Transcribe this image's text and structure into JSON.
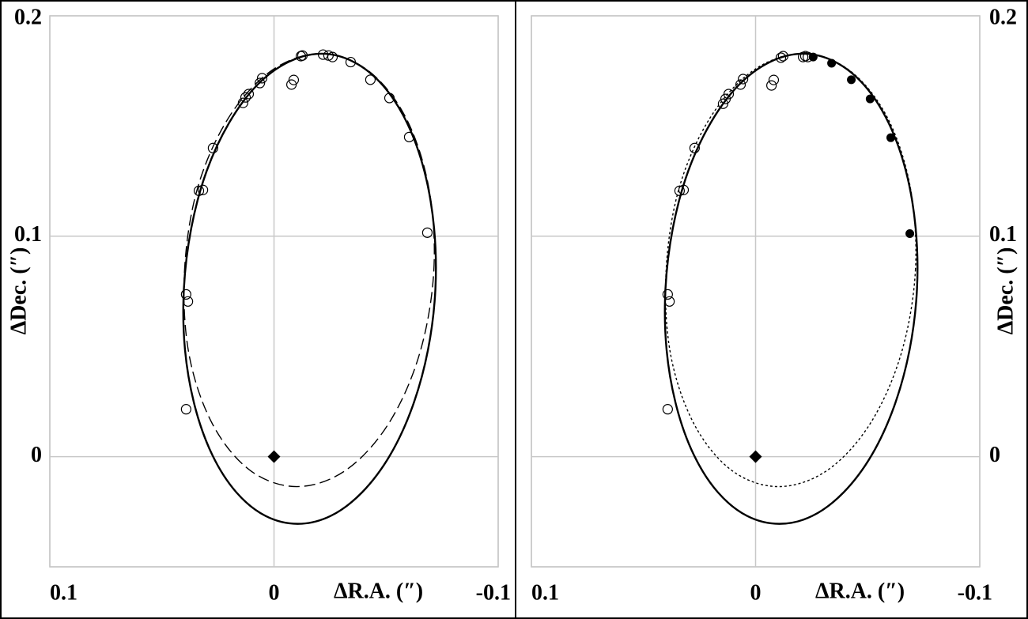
{
  "chart_data": [
    {
      "type": "scatter",
      "x_label": "ΔR.A. (″)",
      "y_label": "ΔDec. (″)",
      "y_axis_side": "left",
      "xlim": [
        0.1,
        -0.1
      ],
      "ylim": [
        -0.05,
        0.2
      ],
      "xticks": [
        0.1,
        0,
        -0.1
      ],
      "yticks": [
        0,
        0.1,
        0.2
      ],
      "grid": true,
      "series": [
        {
          "kind": "line",
          "line_style": "solid",
          "color": "#000000",
          "x": [
            -0.072,
            -0.0714,
            -0.0671,
            -0.0593,
            -0.0485,
            -0.0355,
            -0.0212,
            -0.0065,
            0.0076,
            0.02,
            0.0301,
            0.0369,
            0.0402,
            0.0397,
            0.0353,
            0.0275,
            0.0168,
            0.0038,
            -0.0106,
            -0.0253,
            -0.0393,
            -0.0518,
            -0.0618,
            -0.0687
          ],
          "y": [
            0.0761,
            0.1037,
            0.1294,
            0.1515,
            0.1685,
            0.1791,
            0.1828,
            0.1791,
            0.1685,
            0.1515,
            0.1294,
            0.1037,
            0.0761,
            0.0485,
            0.0228,
            0.0007,
            -0.0162,
            -0.0269,
            -0.0305,
            -0.0269,
            -0.0162,
            0.0007,
            0.0228,
            0.0485
          ]
        },
        {
          "kind": "line",
          "line_style": "dashed",
          "color": "#000000",
          "x": [
            -0.0713,
            -0.069,
            -0.0587,
            -0.0418,
            -0.0208,
            0.0009,
            0.0201,
            0.034,
            0.0399,
            0.038,
            0.0276,
            0.0107,
            -0.0102,
            -0.032,
            -0.0512,
            -0.065
          ],
          "y": [
            0.0846,
            0.1222,
            0.154,
            0.1753,
            0.1828,
            0.1753,
            0.154,
            0.1222,
            0.0846,
            0.0469,
            0.0151,
            -0.0062,
            -0.0136,
            -0.0062,
            0.0151,
            0.0469
          ]
        },
        {
          "kind": "points",
          "marker": "open-circle",
          "color": "#000000",
          "x": [
            0.0392,
            0.0384,
            0.0392,
            0.0335,
            0.0317,
            0.0272,
            0.0138,
            0.0127,
            0.0113,
            0.0063,
            0.0053,
            -0.0078,
            -0.0088,
            -0.012,
            -0.0127,
            -0.0219,
            -0.0243,
            -0.0261,
            -0.0342,
            -0.043,
            -0.0515,
            -0.0603,
            -0.0684
          ],
          "y": [
            0.0736,
            0.0704,
            0.0215,
            0.1206,
            0.121,
            0.14,
            0.1605,
            0.163,
            0.1645,
            0.1695,
            0.1717,
            0.1688,
            0.1709,
            0.1817,
            0.182,
            0.1824,
            0.182,
            0.1813,
            0.179,
            0.171,
            0.1627,
            0.145,
            0.1016
          ]
        },
        {
          "kind": "points",
          "marker": "diamond",
          "color": "#000000",
          "x": [
            0
          ],
          "y": [
            0
          ]
        }
      ]
    },
    {
      "type": "scatter",
      "x_label": "ΔR.A. (″)",
      "y_label": "ΔDec. (″)",
      "y_axis_side": "right",
      "xlim": [
        0.1,
        -0.1
      ],
      "ylim": [
        -0.05,
        0.2
      ],
      "xticks": [
        0.1,
        0,
        -0.1
      ],
      "yticks": [
        0,
        0.1,
        0.2
      ],
      "grid": true,
      "series": [
        {
          "kind": "line",
          "line_style": "solid",
          "color": "#000000",
          "x": [
            -0.072,
            -0.0714,
            -0.0671,
            -0.0593,
            -0.0485,
            -0.0355,
            -0.0212,
            -0.0065,
            0.0076,
            0.02,
            0.0301,
            0.0369,
            0.0402,
            0.0397,
            0.0353,
            0.0275,
            0.0168,
            0.0038,
            -0.0106,
            -0.0253,
            -0.0393,
            -0.0518,
            -0.0618,
            -0.0687
          ],
          "y": [
            0.0761,
            0.1037,
            0.1294,
            0.1515,
            0.1685,
            0.1791,
            0.1828,
            0.1791,
            0.1685,
            0.1515,
            0.1294,
            0.1037,
            0.0761,
            0.0485,
            0.0228,
            0.0007,
            -0.0162,
            -0.0269,
            -0.0305,
            -0.0269,
            -0.0162,
            0.0007,
            0.0228,
            0.0485
          ]
        },
        {
          "kind": "line",
          "line_style": "dotted",
          "color": "#000000",
          "x": [
            -0.0713,
            -0.069,
            -0.0587,
            -0.0418,
            -0.0208,
            0.0009,
            0.0201,
            0.034,
            0.0399,
            0.038,
            0.0276,
            0.0107,
            -0.0102,
            -0.032,
            -0.0512,
            -0.065
          ],
          "y": [
            0.0846,
            0.1222,
            0.154,
            0.1753,
            0.1828,
            0.1753,
            0.154,
            0.1222,
            0.0846,
            0.0469,
            0.0151,
            -0.0062,
            -0.0136,
            -0.0062,
            0.0151,
            0.0469
          ]
        },
        {
          "kind": "points",
          "marker": "open-circle",
          "color": "#000000",
          "x": [
            0.0392,
            0.0384,
            0.0392,
            0.0339,
            0.0321,
            0.0272,
            0.0145,
            0.0134,
            0.012,
            0.0067,
            0.0056,
            -0.0071,
            -0.0081,
            -0.0113,
            -0.0123,
            -0.0212,
            -0.0222,
            -0.0233
          ],
          "y": [
            0.0736,
            0.0704,
            0.0215,
            0.1206,
            0.121,
            0.14,
            0.1601,
            0.1623,
            0.1645,
            0.1688,
            0.1713,
            0.1684,
            0.1709,
            0.181,
            0.1817,
            0.1813,
            0.1817,
            0.1813
          ]
        },
        {
          "kind": "points",
          "marker": "filled-circle",
          "color": "#000000",
          "x": [
            -0.0257,
            -0.0339,
            -0.0427,
            -0.0511,
            -0.0603,
            -0.0688
          ],
          "y": [
            0.1813,
            0.1785,
            0.171,
            0.1623,
            0.1447,
            0.1012
          ]
        },
        {
          "kind": "points",
          "marker": "diamond",
          "color": "#000000",
          "x": [
            0
          ],
          "y": [
            0
          ]
        }
      ]
    }
  ]
}
